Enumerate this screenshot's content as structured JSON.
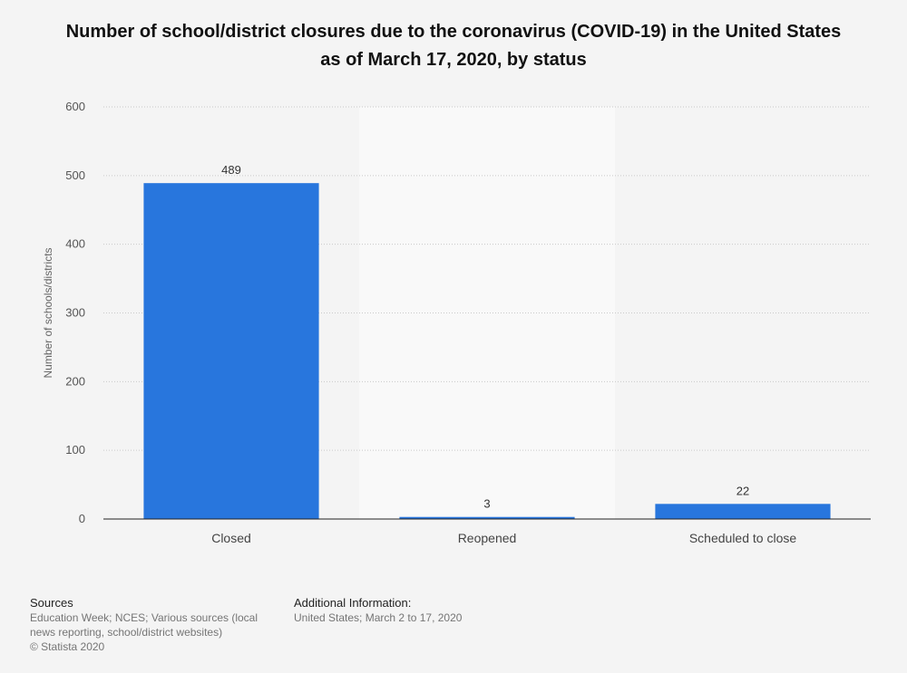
{
  "chart_data": {
    "type": "bar",
    "title": "Number of school/district closures due to the coronavirus (COVID-19) in the United States as of March 17, 2020, by status",
    "categories": [
      "Closed",
      "Reopened",
      "Scheduled to close"
    ],
    "values": [
      489,
      3,
      22
    ],
    "data_labels": [
      "489",
      "3",
      "22"
    ],
    "ylabel": "Number of schools/districts",
    "xlabel": "",
    "ylim": [
      0,
      600
    ],
    "yticks": [
      0,
      100,
      200,
      300,
      400,
      500,
      600
    ],
    "ytick_labels": [
      "0",
      "100",
      "200",
      "300",
      "400",
      "500",
      "600"
    ],
    "grid": true,
    "bar_color": "#2876dd",
    "highlight_band_color": "#f9f9f9"
  },
  "footer": {
    "sources_heading": "Sources",
    "sources_line1": "Education Week; NCES; Various sources (local",
    "sources_line2": "news reporting, school/district websites)",
    "copyright": "© Statista 2020",
    "additional_heading": "Additional Information:",
    "additional_text": "United States; March 2 to 17, 2020"
  }
}
